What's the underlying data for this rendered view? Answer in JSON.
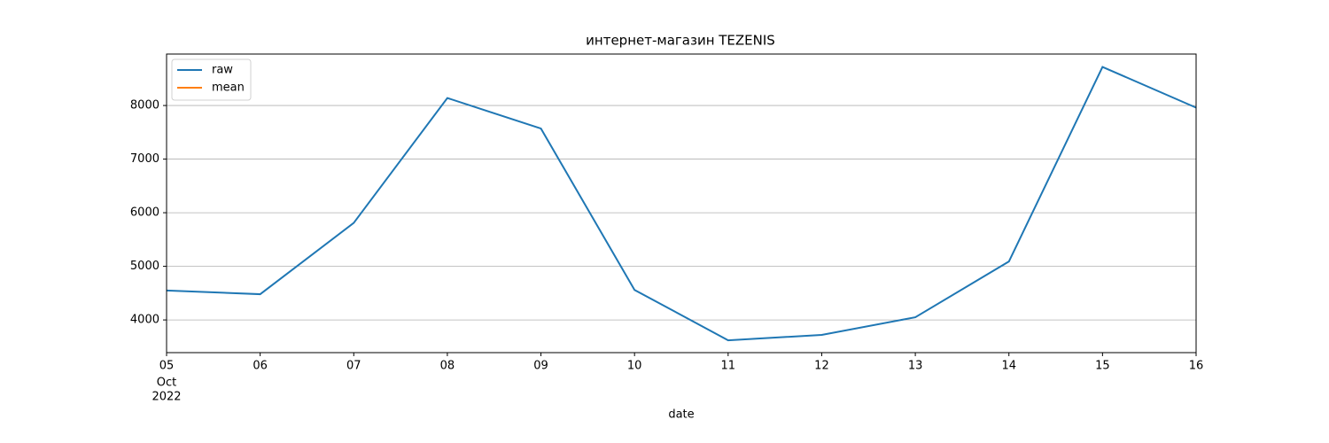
{
  "chart_data": {
    "type": "line",
    "title": "интернет-магазин TEZENIS",
    "x_label": "date",
    "categories": [
      "05",
      "06",
      "07",
      "08",
      "09",
      "10",
      "11",
      "12",
      "13",
      "14",
      "15",
      "16"
    ],
    "x_sublabels": [
      "Oct",
      "2022"
    ],
    "series": [
      {
        "name": "raw",
        "color": "#1f77b4",
        "values": [
          4550,
          4480,
          5810,
          8140,
          7570,
          4560,
          3620,
          3720,
          4050,
          5090,
          8720,
          7960
        ]
      },
      {
        "name": "mean",
        "color": "#ff7f0e",
        "values": [
          null,
          null,
          null,
          null,
          null,
          null,
          null,
          null,
          null,
          null,
          null,
          null
        ]
      }
    ],
    "ylim": [
      3390,
      8960
    ],
    "yticks": [
      4000,
      5000,
      6000,
      7000,
      8000
    ],
    "grid": true,
    "legend": "upper left"
  }
}
